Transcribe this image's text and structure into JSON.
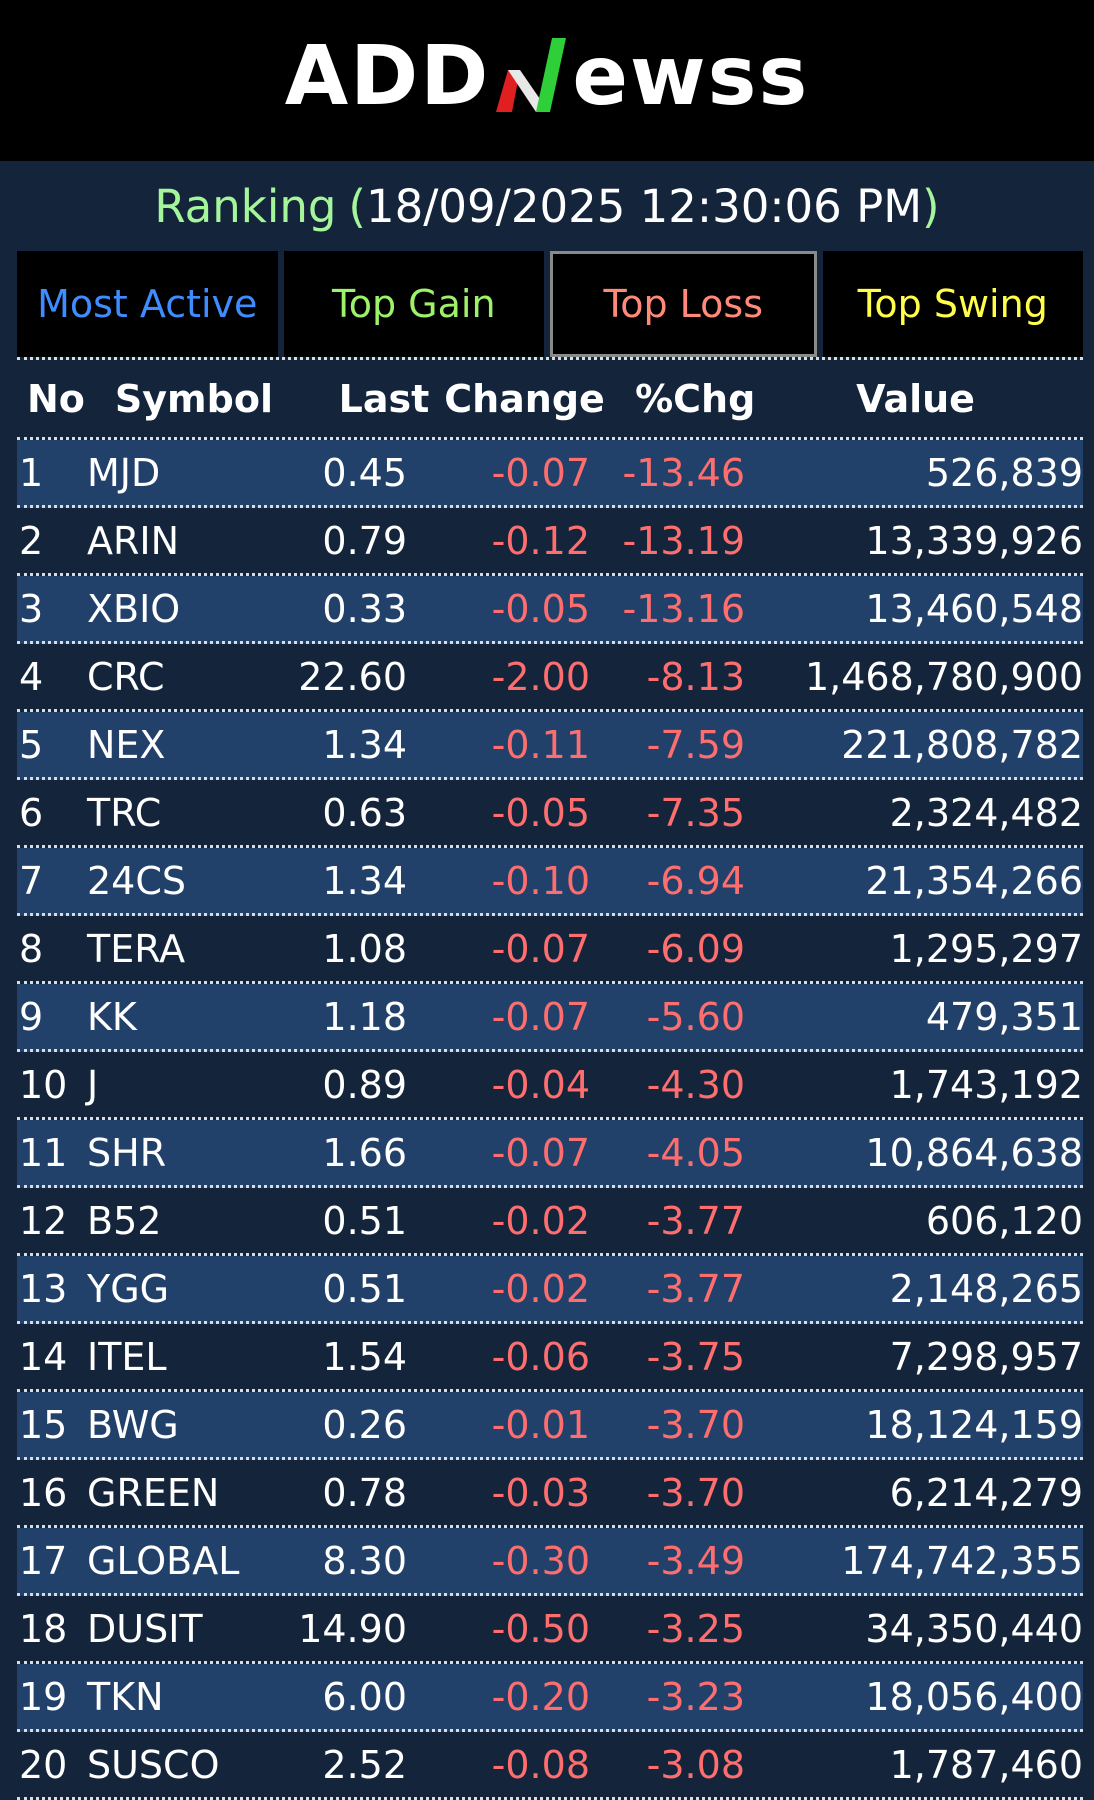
{
  "header": {
    "logo_left": "ADD",
    "logo_right": "ewss"
  },
  "ranking": {
    "label": "Ranking",
    "timestamp": "18/09/2025 12:30:06 PM"
  },
  "tabs": [
    {
      "label": "Most Active",
      "active": false
    },
    {
      "label": "Top Gain",
      "active": false
    },
    {
      "label": "Top Loss",
      "active": true
    },
    {
      "label": "Top Swing",
      "active": false
    }
  ],
  "columns": {
    "no": "No",
    "symbol": "Symbol",
    "last": "Last",
    "change": "Change",
    "pct": "%Chg",
    "value": "Value"
  },
  "rows": [
    {
      "no": "1",
      "symbol": "MJD",
      "last": "0.45",
      "change": "-0.07",
      "pct": "-13.46",
      "value": "526,839"
    },
    {
      "no": "2",
      "symbol": "ARIN",
      "last": "0.79",
      "change": "-0.12",
      "pct": "-13.19",
      "value": "13,339,926"
    },
    {
      "no": "3",
      "symbol": "XBIO",
      "last": "0.33",
      "change": "-0.05",
      "pct": "-13.16",
      "value": "13,460,548"
    },
    {
      "no": "4",
      "symbol": "CRC",
      "last": "22.60",
      "change": "-2.00",
      "pct": "-8.13",
      "value": "1,468,780,900"
    },
    {
      "no": "5",
      "symbol": "NEX",
      "last": "1.34",
      "change": "-0.11",
      "pct": "-7.59",
      "value": "221,808,782"
    },
    {
      "no": "6",
      "symbol": "TRC",
      "last": "0.63",
      "change": "-0.05",
      "pct": "-7.35",
      "value": "2,324,482"
    },
    {
      "no": "7",
      "symbol": "24CS",
      "last": "1.34",
      "change": "-0.10",
      "pct": "-6.94",
      "value": "21,354,266"
    },
    {
      "no": "8",
      "symbol": "TERA",
      "last": "1.08",
      "change": "-0.07",
      "pct": "-6.09",
      "value": "1,295,297"
    },
    {
      "no": "9",
      "symbol": "KK",
      "last": "1.18",
      "change": "-0.07",
      "pct": "-5.60",
      "value": "479,351"
    },
    {
      "no": "10",
      "symbol": "J",
      "last": "0.89",
      "change": "-0.04",
      "pct": "-4.30",
      "value": "1,743,192"
    },
    {
      "no": "11",
      "symbol": "SHR",
      "last": "1.66",
      "change": "-0.07",
      "pct": "-4.05",
      "value": "10,864,638"
    },
    {
      "no": "12",
      "symbol": "B52",
      "last": "0.51",
      "change": "-0.02",
      "pct": "-3.77",
      "value": "606,120"
    },
    {
      "no": "13",
      "symbol": "YGG",
      "last": "0.51",
      "change": "-0.02",
      "pct": "-3.77",
      "value": "2,148,265"
    },
    {
      "no": "14",
      "symbol": "ITEL",
      "last": "1.54",
      "change": "-0.06",
      "pct": "-3.75",
      "value": "7,298,957"
    },
    {
      "no": "15",
      "symbol": "BWG",
      "last": "0.26",
      "change": "-0.01",
      "pct": "-3.70",
      "value": "18,124,159"
    },
    {
      "no": "16",
      "symbol": "GREEN",
      "last": "0.78",
      "change": "-0.03",
      "pct": "-3.70",
      "value": "6,214,279"
    },
    {
      "no": "17",
      "symbol": "GLOBAL",
      "last": "8.30",
      "change": "-0.30",
      "pct": "-3.49",
      "value": "174,742,355"
    },
    {
      "no": "18",
      "symbol": "DUSIT",
      "last": "14.90",
      "change": "-0.50",
      "pct": "-3.25",
      "value": "34,350,440"
    },
    {
      "no": "19",
      "symbol": "TKN",
      "last": "6.00",
      "change": "-0.20",
      "pct": "-3.23",
      "value": "18,056,400"
    },
    {
      "no": "20",
      "symbol": "SUSCO",
      "last": "2.52",
      "change": "-0.08",
      "pct": "-3.08",
      "value": "1,787,460"
    }
  ]
}
